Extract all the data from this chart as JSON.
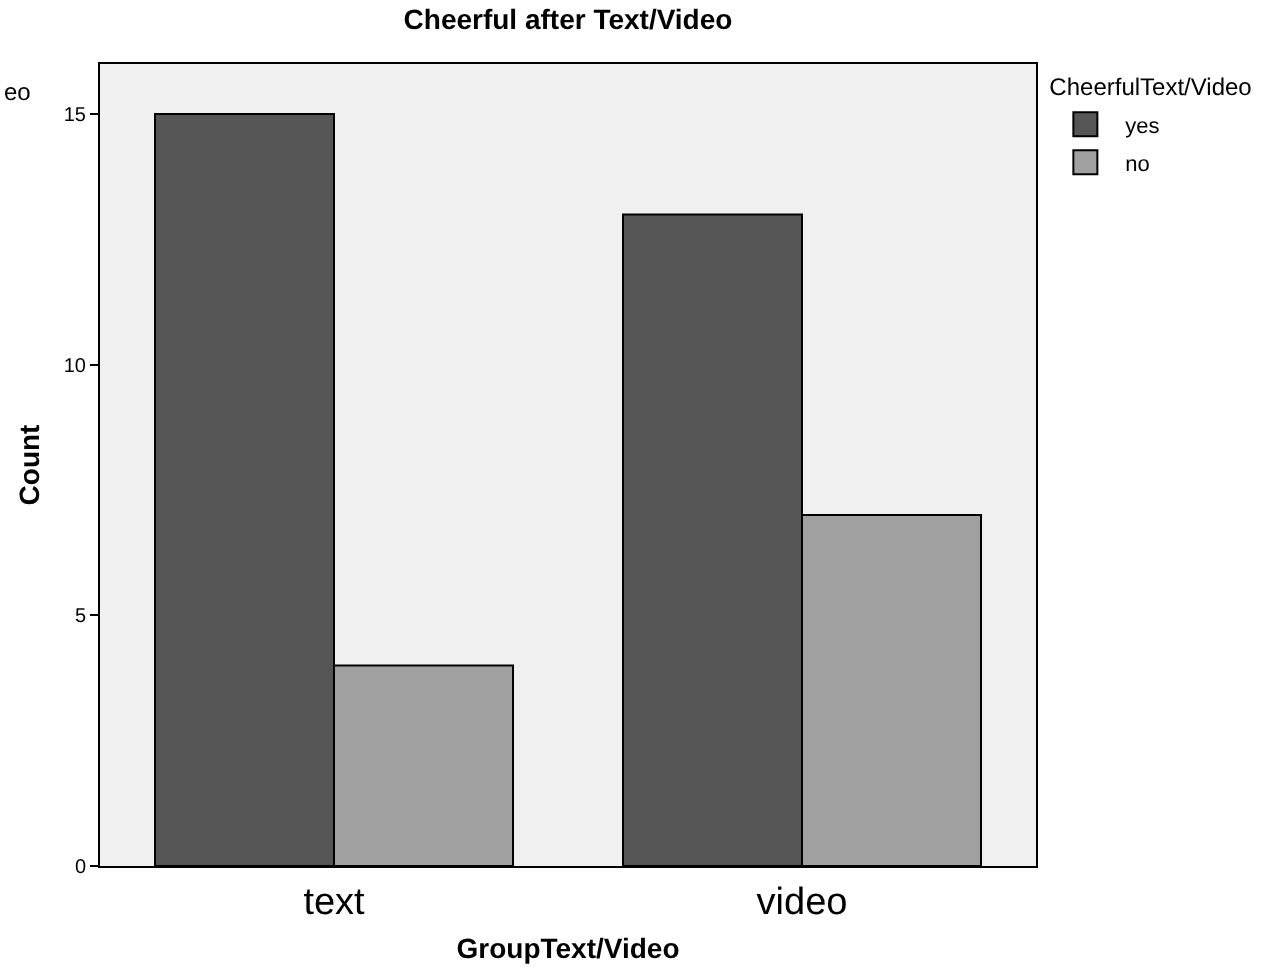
{
  "chart_data": {
    "type": "bar",
    "title": "Cheerful after Text/Video",
    "xlabel": "GroupText/Video",
    "ylabel": "Count",
    "legend_title": "CheerfulText/Video",
    "categories": [
      "text",
      "video"
    ],
    "series": [
      {
        "name": "yes",
        "color": "#555555",
        "values": [
          15,
          13
        ]
      },
      {
        "name": "no",
        "color": "#a0a0a0",
        "values": [
          4,
          7
        ]
      }
    ],
    "ylim": [
      0,
      16
    ],
    "yticks": [
      0,
      5,
      10,
      15
    ],
    "grid": false,
    "legend": "top right",
    "annotations": [
      "eo"
    ]
  }
}
